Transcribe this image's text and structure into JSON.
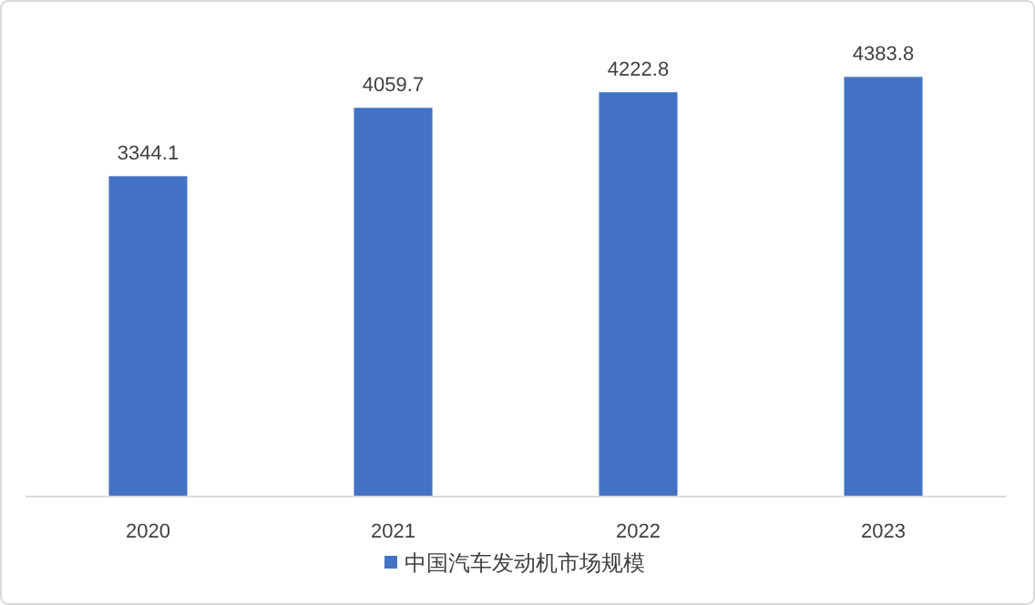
{
  "chart_data": {
    "type": "bar",
    "categories": [
      "2020",
      "2021",
      "2022",
      "2023"
    ],
    "series": [
      {
        "name": "中国汽车发动机市场规模",
        "color": "#4472c4",
        "values": [
          3344.1,
          4059.7,
          4222.8,
          4383.8
        ]
      }
    ],
    "data_labels": true,
    "legend": "bottom",
    "grid": false
  }
}
